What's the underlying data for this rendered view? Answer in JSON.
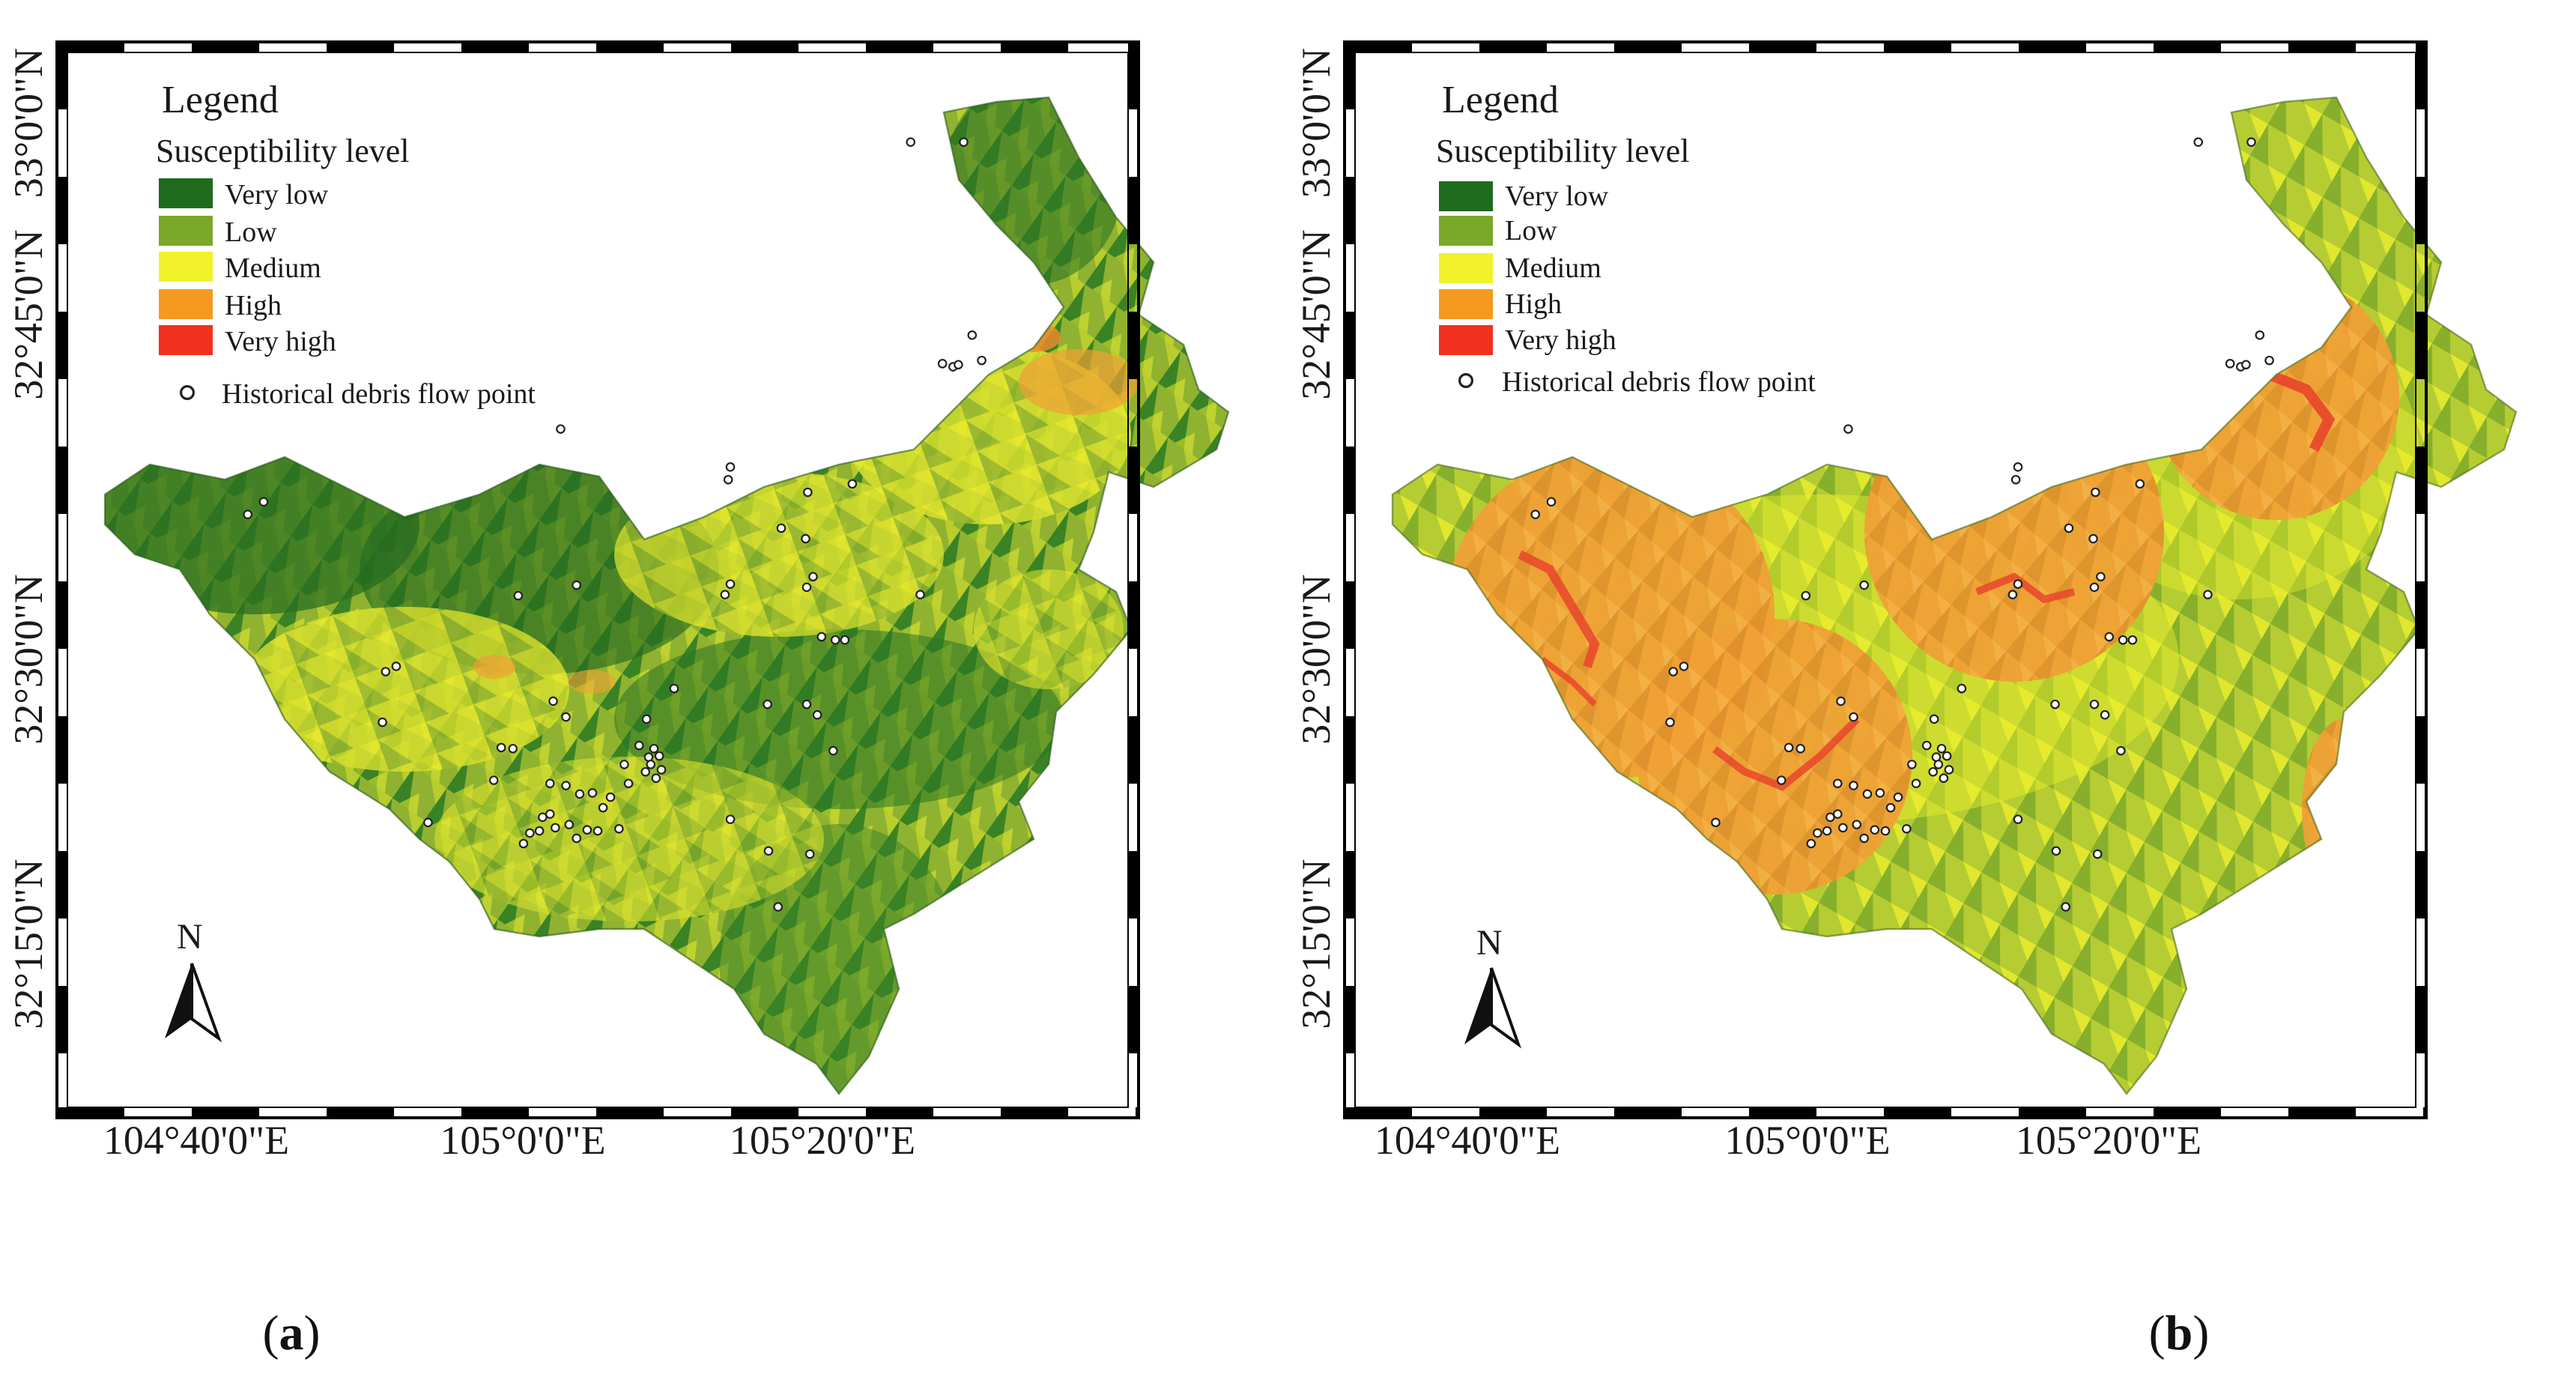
{
  "panels": [
    {
      "id": "a",
      "caption_open": "(",
      "caption_letter": "a",
      "caption_close": ")",
      "legend_title": "Legend",
      "legend_subtitle": "Susceptibility level",
      "legend_items": [
        {
          "label": "Very low",
          "color": "#1e6b1e"
        },
        {
          "label": "Low",
          "color": "#7aa829"
        },
        {
          "label": "Medium",
          "color": "#f2f22a"
        },
        {
          "label": "High",
          "color": "#f59a1e"
        },
        {
          "label": "Very high",
          "color": "#f2301e"
        }
      ],
      "point_label": "Historical debris flow point",
      "north_label": "N"
    },
    {
      "id": "b",
      "caption_open": "(",
      "caption_letter": "b",
      "caption_close": ")",
      "legend_title": "Legend",
      "legend_subtitle": "Susceptibility level",
      "legend_items": [
        {
          "label": "Very low",
          "color": "#1e6b1e"
        },
        {
          "label": "Low",
          "color": "#7aa829"
        },
        {
          "label": "Medium",
          "color": "#f2f22a"
        },
        {
          "label": "High",
          "color": "#f59a1e"
        },
        {
          "label": "Very high",
          "color": "#f2301e"
        }
      ],
      "point_label": "Historical debris flow point",
      "north_label": "N"
    }
  ],
  "lat_labels": [
    "33°0'0\"N",
    "32°45'0\"N",
    "32°30'0\"N",
    "32°15'0\"N"
  ],
  "lon_labels": [
    "104°40'0\"E",
    "105°0'0\"E",
    "105°20'0\"E"
  ],
  "debris_points": [
    [
      0.795,
      0.085
    ],
    [
      0.845,
      0.085
    ],
    [
      0.853,
      0.268
    ],
    [
      0.862,
      0.292
    ],
    [
      0.825,
      0.295
    ],
    [
      0.835,
      0.298
    ],
    [
      0.84,
      0.296
    ],
    [
      0.465,
      0.357
    ],
    [
      0.625,
      0.393
    ],
    [
      0.623,
      0.405
    ],
    [
      0.698,
      0.417
    ],
    [
      0.74,
      0.409
    ],
    [
      0.17,
      0.438
    ],
    [
      0.185,
      0.426
    ],
    [
      0.673,
      0.451
    ],
    [
      0.696,
      0.461
    ],
    [
      0.697,
      0.507
    ],
    [
      0.703,
      0.497
    ],
    [
      0.625,
      0.504
    ],
    [
      0.62,
      0.514
    ],
    [
      0.48,
      0.505
    ],
    [
      0.804,
      0.514
    ],
    [
      0.724,
      0.557
    ],
    [
      0.733,
      0.557
    ],
    [
      0.711,
      0.554
    ],
    [
      0.31,
      0.582
    ],
    [
      0.3,
      0.587
    ],
    [
      0.572,
      0.603
    ],
    [
      0.297,
      0.635
    ],
    [
      0.458,
      0.615
    ],
    [
      0.47,
      0.63
    ],
    [
      0.546,
      0.632
    ],
    [
      0.66,
      0.618
    ],
    [
      0.697,
      0.618
    ],
    [
      0.707,
      0.628
    ],
    [
      0.42,
      0.66
    ],
    [
      0.409,
      0.659
    ],
    [
      0.402,
      0.69
    ],
    [
      0.539,
      0.657
    ],
    [
      0.548,
      0.668
    ],
    [
      0.553,
      0.66
    ],
    [
      0.558,
      0.667
    ],
    [
      0.55,
      0.675
    ],
    [
      0.56,
      0.68
    ],
    [
      0.545,
      0.682
    ],
    [
      0.555,
      0.688
    ],
    [
      0.722,
      0.662
    ],
    [
      0.525,
      0.675
    ],
    [
      0.529,
      0.693
    ],
    [
      0.455,
      0.693
    ],
    [
      0.47,
      0.695
    ],
    [
      0.483,
      0.703
    ],
    [
      0.495,
      0.702
    ],
    [
      0.512,
      0.706
    ],
    [
      0.505,
      0.716
    ],
    [
      0.448,
      0.725
    ],
    [
      0.455,
      0.722
    ],
    [
      0.46,
      0.735
    ],
    [
      0.445,
      0.738
    ],
    [
      0.436,
      0.74
    ],
    [
      0.43,
      0.75
    ],
    [
      0.473,
      0.732
    ],
    [
      0.48,
      0.745
    ],
    [
      0.49,
      0.737
    ],
    [
      0.5,
      0.738
    ],
    [
      0.52,
      0.736
    ],
    [
      0.625,
      0.727
    ],
    [
      0.661,
      0.757
    ],
    [
      0.7,
      0.76
    ],
    [
      0.34,
      0.73
    ],
    [
      0.67,
      0.81
    ],
    [
      0.425,
      0.515
    ]
  ],
  "colors": {
    "very_low": "#1e6b1e",
    "low": "#7aa829",
    "medium": "#f2f22a",
    "high": "#f59a1e",
    "very_high": "#f2301e",
    "frame": "#000000"
  }
}
